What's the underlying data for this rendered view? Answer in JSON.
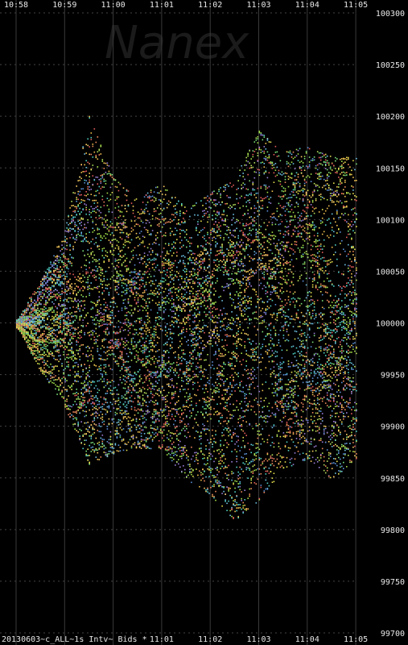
{
  "watermark": "Nanex",
  "footer_label": "20130603~c_ALL~1s Intv~ Bids *",
  "colors": {
    "background": "#000000",
    "grid": "#444444",
    "axis_text": "#e8e8e8",
    "watermark": "#1b1b1b",
    "series_palette": [
      "#5b8fd6",
      "#6ec1e4",
      "#7be07b",
      "#b6e35a",
      "#e6e04f",
      "#f2c14e",
      "#f08a5d",
      "#e65c5c",
      "#9b7fd8",
      "#4fd1c5",
      "#a3e048",
      "#ffd166"
    ]
  },
  "chart_data": {
    "type": "scatter",
    "grid": true,
    "x_axis": {
      "top_ticks": [
        "10:58",
        "10:59",
        "11:00",
        "11:01",
        "11:02",
        "11:03",
        "11:04",
        "11:05"
      ],
      "bottom_ticks": [
        "11:01",
        "11:02",
        "11:03",
        "11:04",
        "11:05"
      ],
      "range": [
        "10:58",
        "11:05"
      ]
    },
    "y_axis": {
      "ticks": [
        100300,
        100250,
        100200,
        100150,
        100100,
        100050,
        100000,
        99950,
        99900,
        99850,
        99800,
        99750,
        99700
      ],
      "range": [
        99700,
        100300
      ],
      "position": "right"
    },
    "series_count": 60,
    "envelope_minutes": [
      0,
      0.5,
      1,
      1.5,
      2,
      2.5,
      3,
      3.5,
      4,
      4.5,
      5,
      5.5,
      6,
      6.5,
      7
    ],
    "envelope_high": [
      100005,
      100040,
      100090,
      100200,
      100140,
      100120,
      100135,
      100110,
      100125,
      100140,
      100185,
      100165,
      100170,
      100160,
      100160
    ],
    "envelope_low": [
      99995,
      99955,
      99920,
      99865,
      99875,
      99880,
      99880,
      99850,
      99835,
      99810,
      99830,
      99860,
      99870,
      99850,
      99870
    ]
  }
}
